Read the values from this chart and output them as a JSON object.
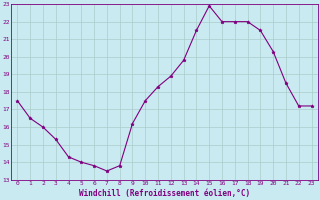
{
  "x": [
    0,
    1,
    2,
    3,
    4,
    5,
    6,
    7,
    8,
    9,
    10,
    11,
    12,
    13,
    14,
    15,
    16,
    17,
    18,
    19,
    20,
    21,
    22,
    23
  ],
  "y": [
    17.5,
    16.5,
    16.0,
    15.3,
    14.3,
    14.0,
    13.8,
    13.5,
    13.8,
    16.2,
    17.5,
    18.3,
    18.9,
    19.8,
    21.5,
    22.9,
    22.0,
    22.0,
    22.0,
    21.5,
    20.3,
    18.5,
    17.2,
    17.2
  ],
  "line_color": "#800080",
  "marker": "*",
  "markersize": 2.5,
  "linewidth": 0.8,
  "bg_color": "#c8eaf0",
  "grid_color": "#aacccc",
  "xlabel": "Windchill (Refroidissement éolien,°C)",
  "xlim": [
    -0.5,
    23.5
  ],
  "ylim": [
    13,
    23
  ],
  "yticks": [
    13,
    14,
    15,
    16,
    17,
    18,
    19,
    20,
    21,
    22,
    23
  ],
  "xticks": [
    0,
    1,
    2,
    3,
    4,
    5,
    6,
    7,
    8,
    9,
    10,
    11,
    12,
    13,
    14,
    15,
    16,
    17,
    18,
    19,
    20,
    21,
    22,
    23
  ],
  "tick_fontsize": 4.5,
  "xlabel_fontsize": 5.5,
  "tick_color": "#800080",
  "xlabel_color": "#800080",
  "axis_color": "#800080"
}
